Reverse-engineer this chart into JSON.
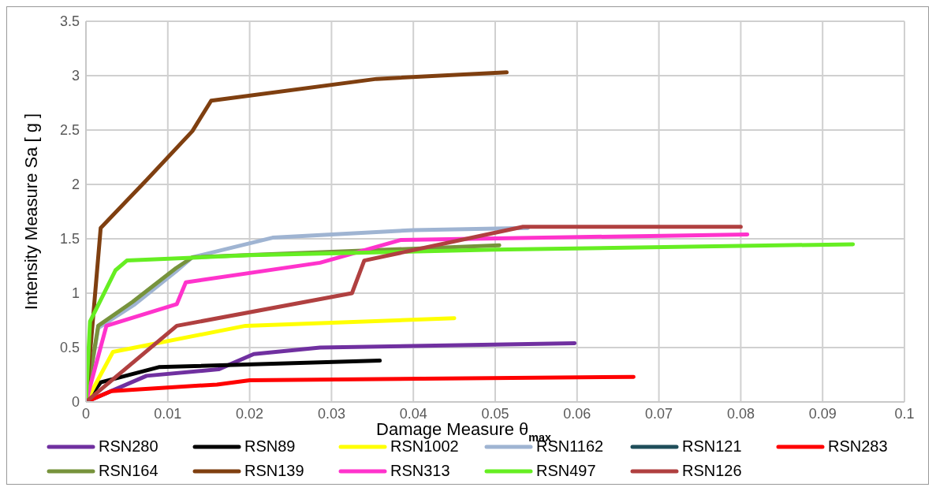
{
  "chart_data": {
    "type": "line",
    "xlabel": "Damage Measure θ$_{max}$",
    "ylabel": "Intensity Measure Sa [ g ]",
    "xlim": [
      0,
      0.1
    ],
    "xticks": [
      0,
      0.01,
      0.02,
      0.03,
      0.04,
      0.05,
      0.06,
      0.07,
      0.08,
      0.09,
      0.1
    ],
    "ylim": [
      0,
      3.5
    ],
    "yticks": [
      0,
      0.5,
      1,
      1.5,
      2,
      2.5,
      3,
      3.5
    ],
    "grid": true,
    "legend": "bottom",
    "marker": "none",
    "line_style": "solid",
    "series": [
      {
        "name": "RSN280",
        "color": "#7030a0",
        "x": [
          0,
          0.0074,
          0.0162,
          0.0205,
          0.0286,
          0.0597
        ],
        "values": [
          0,
          0.24,
          0.3,
          0.44,
          0.5,
          0.54
        ]
      },
      {
        "name": "RSN89",
        "color": "#000000",
        "x": [
          0,
          0.0018,
          0.0089,
          0.0359
        ],
        "values": [
          0,
          0.18,
          0.32,
          0.38
        ]
      },
      {
        "name": "RSN1002",
        "color": "#ffff00",
        "x": [
          0,
          0.0033,
          0.0195,
          0.045
        ],
        "values": [
          0,
          0.46,
          0.7,
          0.77
        ]
      },
      {
        "name": "RSN1162",
        "color": "#9fb4d2",
        "x": [
          0,
          0.0015,
          0.006,
          0.011,
          0.013,
          0.0228,
          0.04,
          0.054
        ],
        "values": [
          0,
          0.68,
          0.9,
          1.2,
          1.33,
          1.51,
          1.58,
          1.6
        ]
      },
      {
        "name": "RSN121",
        "color": "#1f4e5a"
      },
      {
        "name": "RSN283",
        "color": "#ff0000",
        "x": [
          0,
          0.0031,
          0.016,
          0.02,
          0.0669
        ],
        "values": [
          0,
          0.1,
          0.16,
          0.2,
          0.23
        ]
      },
      {
        "name": "RSN164",
        "color": "#77933c",
        "x": [
          0,
          0.0015,
          0.0057,
          0.011,
          0.013,
          0.0505
        ],
        "values": [
          0,
          0.7,
          0.92,
          1.23,
          1.33,
          1.44
        ]
      },
      {
        "name": "RSN139",
        "color": "#7f3f10",
        "x": [
          0,
          0.0018,
          0.0074,
          0.013,
          0.0153,
          0.0355,
          0.0514
        ],
        "values": [
          0,
          1.6,
          2.04,
          2.49,
          2.77,
          2.97,
          3.03
        ]
      },
      {
        "name": "RSN313",
        "color": "#ff33cc",
        "x": [
          0,
          0.0025,
          0.0111,
          0.0122,
          0.0286,
          0.0385,
          0.0808
        ],
        "values": [
          0,
          0.7,
          0.9,
          1.1,
          1.28,
          1.49,
          1.54
        ]
      },
      {
        "name": "RSN497",
        "color": "#66ee22",
        "x": [
          0,
          0.0005,
          0.0036,
          0.005,
          0.02,
          0.05,
          0.0937
        ],
        "values": [
          0,
          0.74,
          1.21,
          1.3,
          1.35,
          1.4,
          1.45
        ]
      },
      {
        "name": "RSN126",
        "color": "#b04040",
        "x": [
          0,
          0.0111,
          0.0325,
          0.034,
          0.0534,
          0.08
        ],
        "values": [
          0,
          0.7,
          1.0,
          1.3,
          1.61,
          1.61
        ]
      }
    ]
  }
}
